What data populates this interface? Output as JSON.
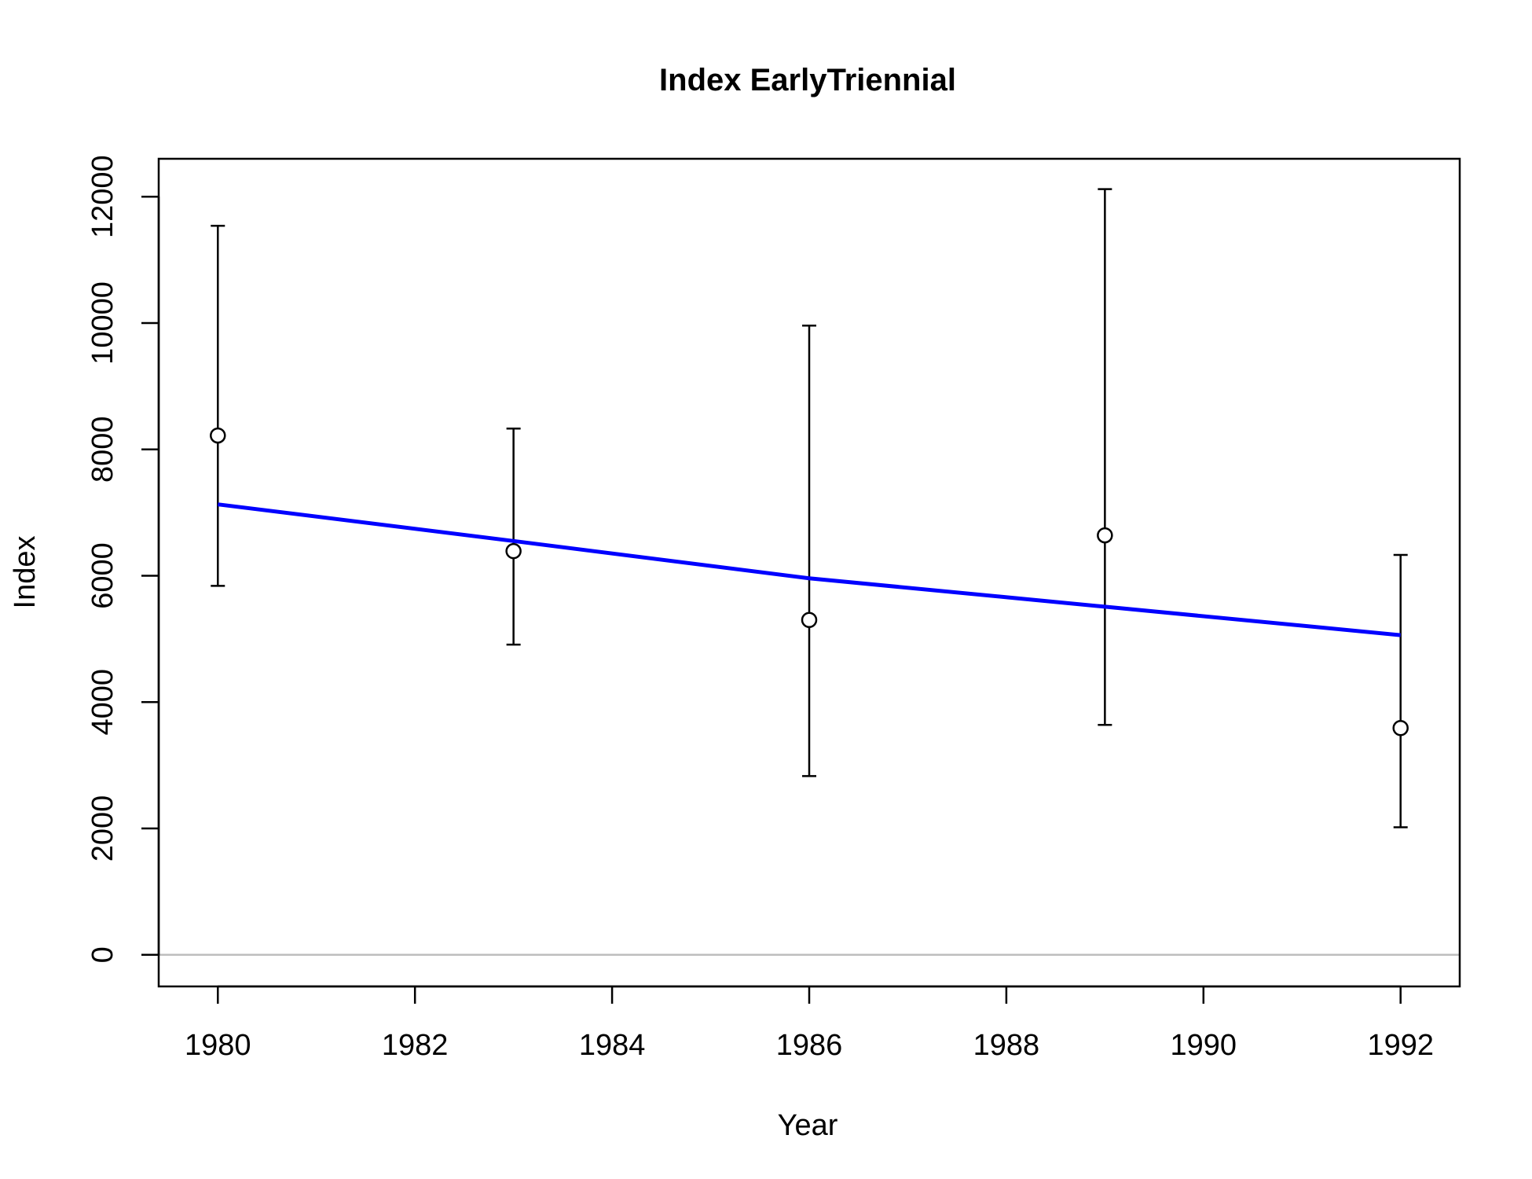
{
  "chart_data": {
    "type": "scatter",
    "title": "Index EarlyTriennial",
    "xlabel": "Year",
    "ylabel": "Index",
    "xlim": [
      1979.4,
      1992.6
    ],
    "ylim": [
      -500,
      12600
    ],
    "x_ticks": [
      1980,
      1982,
      1984,
      1986,
      1988,
      1990,
      1992
    ],
    "y_ticks": [
      0,
      2000,
      4000,
      6000,
      8000,
      10000,
      12000
    ],
    "reference_line": {
      "y": 0,
      "color": "#bebebe"
    },
    "observed": {
      "x": [
        1980,
        1983,
        1986,
        1989,
        1992
      ],
      "y": [
        8220,
        6390,
        5300,
        6640,
        3590
      ],
      "lower": [
        5840,
        4910,
        2830,
        3640,
        2020
      ],
      "upper": [
        11540,
        8330,
        9960,
        12120,
        6330
      ],
      "point_color": "#000000",
      "point_fill": "#ffffff"
    },
    "fitted": {
      "x": [
        1980,
        1983,
        1986,
        1989,
        1992
      ],
      "y": [
        7130,
        6550,
        5960,
        5510,
        5060
      ],
      "color": "#0000ff"
    }
  }
}
